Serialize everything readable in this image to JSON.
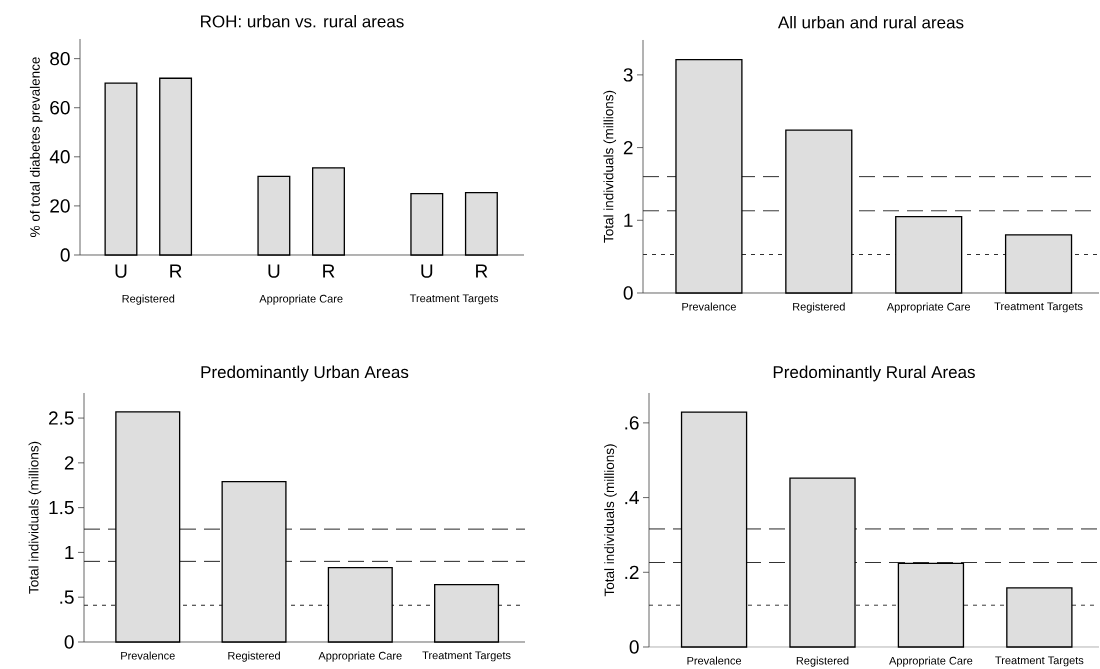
{
  "chart_data": [
    {
      "type": "bar",
      "title": "ROH: urban vs. rural areas",
      "ylabel": "% of total diabetes prevalence",
      "categories": [
        "U",
        "R",
        "U",
        "R",
        "U",
        "R"
      ],
      "values": [
        70,
        72,
        32,
        35.5,
        25,
        25.4
      ],
      "color": "#dedede",
      "ylim": [
        0,
        88
      ],
      "yticks": [
        0,
        20,
        40,
        60,
        80
      ],
      "annotations": [
        "Registered",
        "Appropriate Care",
        "Treatment Targets"
      ]
    },
    {
      "type": "bar",
      "title": "All urban and rural areas",
      "ylabel": "Total individuals (millions)",
      "categories": [
        "Prevalence",
        "Registered",
        "Appropriate Care",
        "Treatment Targets"
      ],
      "values": [
        3.21,
        2.24,
        1.05,
        0.8
      ],
      "color": "#dedede",
      "ylim": [
        0,
        3.48
      ],
      "yticks": [
        0,
        1,
        2,
        3
      ],
      "ref_lines": [
        {
          "axis": "y",
          "value": 1.6,
          "line_style": "dashed"
        },
        {
          "axis": "y",
          "value": 1.13,
          "line_style": "dashed"
        },
        {
          "axis": "y",
          "value": 0.53,
          "line_style": "dotted"
        }
      ]
    },
    {
      "type": "bar",
      "title": "Predominantly Urban Areas",
      "ylabel": "Total individuals (millions)",
      "categories": [
        "Prevalence",
        "Registered",
        "Appropriate Care",
        "Treatment Targets"
      ],
      "values": [
        2.57,
        1.79,
        0.83,
        0.64
      ],
      "color": "#dedede",
      "ylim": [
        0,
        2.78
      ],
      "yticks": [
        0,
        {
          "value": 0.5,
          "label": ".5"
        },
        1,
        1.5,
        2,
        2.5
      ],
      "ref_lines": [
        {
          "axis": "y",
          "value": 1.26,
          "line_style": "dashed"
        },
        {
          "axis": "y",
          "value": 0.9,
          "line_style": "dashed"
        },
        {
          "axis": "y",
          "value": 0.41,
          "line_style": "dotted"
        }
      ]
    },
    {
      "type": "bar",
      "title": "Predominantly Rural Areas",
      "ylabel": "Total individuals (millions)",
      "categories": [
        "Prevalence",
        "Registered",
        "Appropriate Care",
        "Treatment Targets"
      ],
      "values": [
        0.629,
        0.452,
        0.224,
        0.158
      ],
      "color": "#dedede",
      "ylim": [
        0,
        0.68
      ],
      "yticks": [
        0,
        {
          "value": 0.2,
          "label": ".2"
        },
        {
          "value": 0.4,
          "label": ".4"
        },
        {
          "value": 0.6,
          "label": ".6"
        }
      ],
      "ref_lines": [
        {
          "axis": "y",
          "value": 0.316,
          "line_style": "dashed"
        },
        {
          "axis": "y",
          "value": 0.226,
          "line_style": "dashed"
        },
        {
          "axis": "y",
          "value": 0.112,
          "line_style": "dotted"
        }
      ]
    }
  ]
}
